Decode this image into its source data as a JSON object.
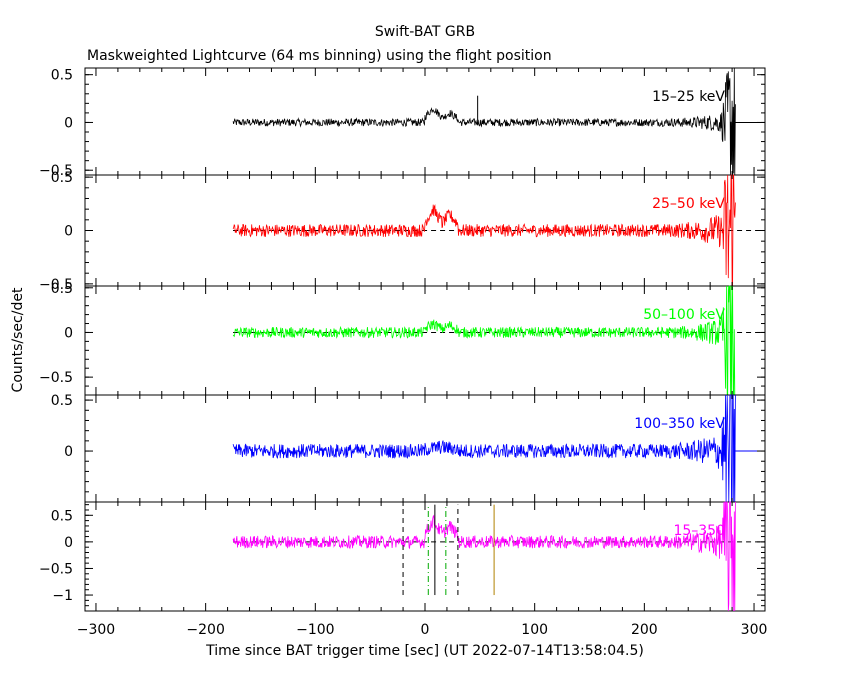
{
  "chart_data": {
    "type": "line",
    "title": "Swift-BAT GRB",
    "subtitle": "Maskweighted Lightcurve (64 ms binning) using the flight position",
    "xlabel": "Time since BAT trigger time [sec] (UT 2022-07-14T13:58:04.5)",
    "ylabel": "Counts/sec/det",
    "xlim": [
      -310,
      310
    ],
    "x_ticks": [
      -300,
      -200,
      -100,
      0,
      100,
      200,
      300
    ],
    "x_tick_labels": [
      "−300",
      "−200",
      "−100",
      "0",
      "100",
      "200",
      "300"
    ],
    "data_range": [
      -175,
      283
    ],
    "grid": false,
    "panels": [
      {
        "label": "15–25 keV",
        "color": "#000000",
        "ylim": [
          -0.55,
          0.57
        ],
        "y_ticks": [
          0.5,
          0,
          -0.5
        ],
        "y_tick_labels": [
          "0.5",
          "0",
          "−0.5"
        ],
        "noise_amplitude": 0.04,
        "burst": [
          {
            "start": 0,
            "end": 15,
            "peak": 0.15
          },
          {
            "start": 15,
            "end": 30,
            "peak": 0.1
          }
        ],
        "spikes": [
          {
            "x": 48,
            "y": 0.28
          }
        ],
        "baseline_dashed": false
      },
      {
        "label": "25–50 keV",
        "color": "#ff0000",
        "ylim": [
          -0.52,
          0.52
        ],
        "y_ticks": [
          0.5,
          0,
          -0.5
        ],
        "y_tick_labels": [
          "0.5",
          "0",
          "−0.5"
        ],
        "noise_amplitude": 0.06,
        "burst": [
          {
            "start": 0,
            "end": 15,
            "peak": 0.2
          },
          {
            "start": 15,
            "end": 30,
            "peak": 0.15
          }
        ],
        "spikes": [],
        "baseline_dashed": true
      },
      {
        "label": "50–100 keV",
        "color": "#00ff00",
        "ylim": [
          -0.7,
          0.52
        ],
        "y_ticks": [
          0.5,
          0,
          -0.5
        ],
        "y_tick_labels": [
          "0.5",
          "0",
          "−0.5"
        ],
        "noise_amplitude": 0.06,
        "burst": [
          {
            "start": 0,
            "end": 15,
            "peak": 0.1
          },
          {
            "start": 15,
            "end": 30,
            "peak": 0.08
          }
        ],
        "spikes": [],
        "baseline_dashed": true
      },
      {
        "label": "100–350 keV",
        "color": "#0000ff",
        "ylim": [
          -0.5,
          0.55
        ],
        "y_ticks": [
          0.5,
          0
        ],
        "y_tick_labels": [
          "0.5",
          "0"
        ],
        "noise_amplitude": 0.07,
        "burst": [
          {
            "start": 0,
            "end": 30,
            "peak": 0.04
          }
        ],
        "spikes": [],
        "baseline_dashed": false
      },
      {
        "label": "15–350",
        "color": "#ff00ff",
        "ylim": [
          -1.3,
          0.75
        ],
        "y_ticks": [
          0.5,
          0,
          -0.5,
          -1
        ],
        "y_tick_labels": [
          "0.5",
          "0",
          "−0.5",
          "−1"
        ],
        "noise_amplitude": 0.12,
        "burst": [
          {
            "start": 0,
            "end": 15,
            "peak": 0.4
          },
          {
            "start": 15,
            "end": 30,
            "peak": 0.3
          }
        ],
        "spikes": [],
        "baseline_dashed": true,
        "markers": [
          {
            "x": -20,
            "color": "#000000",
            "style": "dashed",
            "ymin": -1.0,
            "ymax": 0.7
          },
          {
            "x": 30,
            "color": "#000000",
            "style": "dashed",
            "ymin": -1.0,
            "ymax": 0.7
          },
          {
            "x": 3,
            "color": "#00aa00",
            "style": "dashdot",
            "ymin": -1.0,
            "ymax": 0.7
          },
          {
            "x": 19,
            "color": "#00aa00",
            "style": "dashdot",
            "ymin": -1.0,
            "ymax": 0.7
          },
          {
            "x": 9,
            "color": "#000000",
            "style": "solid",
            "ymin": -1.0,
            "ymax": 0.7
          },
          {
            "x": 63,
            "color": "#b08000",
            "style": "solid",
            "ymin": -1.0,
            "ymax": 0.7
          }
        ]
      }
    ]
  }
}
